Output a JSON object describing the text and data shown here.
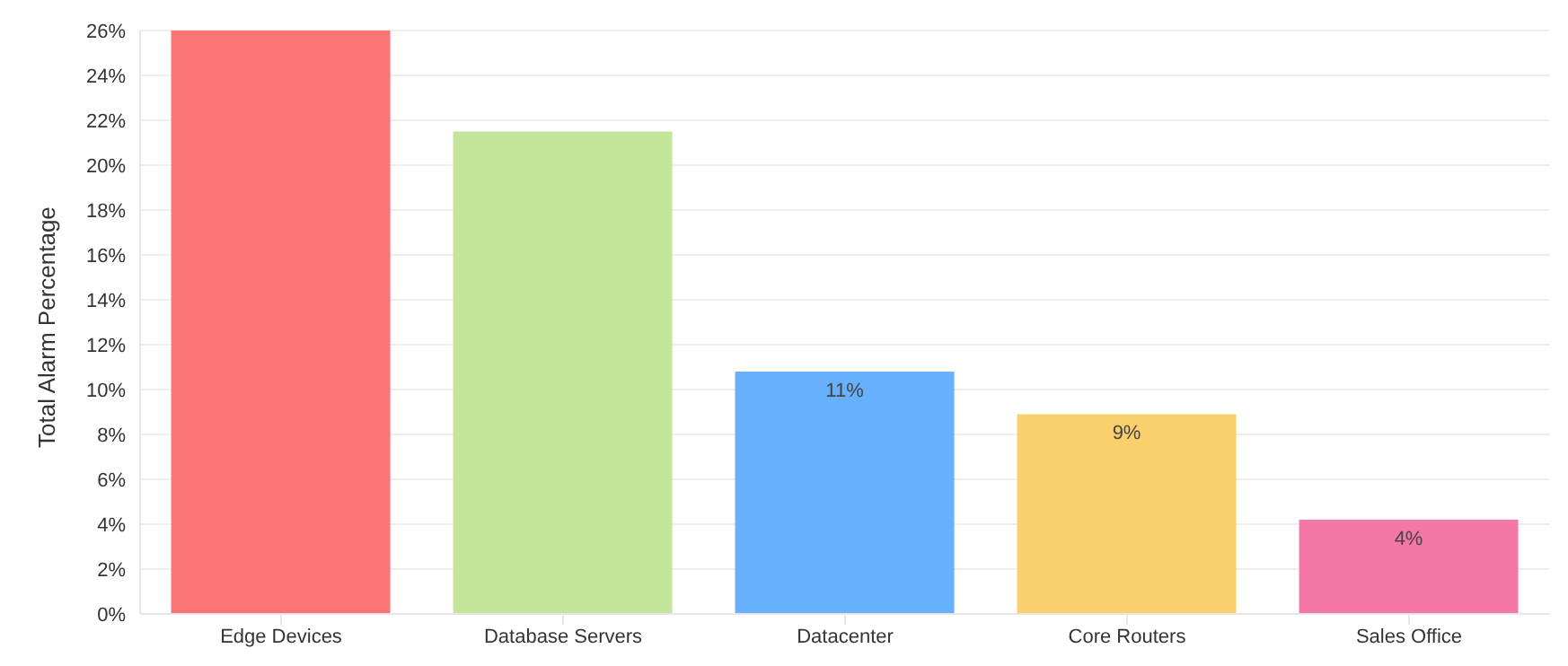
{
  "chart_data": {
    "type": "bar",
    "ylabel": "Total Alarm Percentage",
    "categories": [
      "Edge Devices",
      "Database Servers",
      "Datacenter",
      "Core Routers",
      "Sales Office"
    ],
    "values": [
      26,
      21.5,
      10.8,
      8.9,
      4.2
    ],
    "colors": [
      "#fd7474",
      "#c4e69b",
      "#66b0fd",
      "#fad06c",
      "#f577a5"
    ],
    "value_labels": [
      null,
      null,
      "11%",
      "9%",
      "4%"
    ],
    "ylim": [
      0,
      26
    ],
    "yticks": [
      {
        "value": 0,
        "label": "0%"
      },
      {
        "value": 2,
        "label": "2%"
      },
      {
        "value": 4,
        "label": "4%"
      },
      {
        "value": 6,
        "label": "6%"
      },
      {
        "value": 8,
        "label": "8%"
      },
      {
        "value": 10,
        "label": "10%"
      },
      {
        "value": 12,
        "label": "12%"
      },
      {
        "value": 14,
        "label": "14%"
      },
      {
        "value": 16,
        "label": "16%"
      },
      {
        "value": 18,
        "label": "18%"
      },
      {
        "value": 20,
        "label": "20%"
      },
      {
        "value": 22,
        "label": "22%"
      },
      {
        "value": 24,
        "label": "24%"
      },
      {
        "value": 26,
        "label": "26%"
      }
    ],
    "grid": "y",
    "legend": false
  }
}
